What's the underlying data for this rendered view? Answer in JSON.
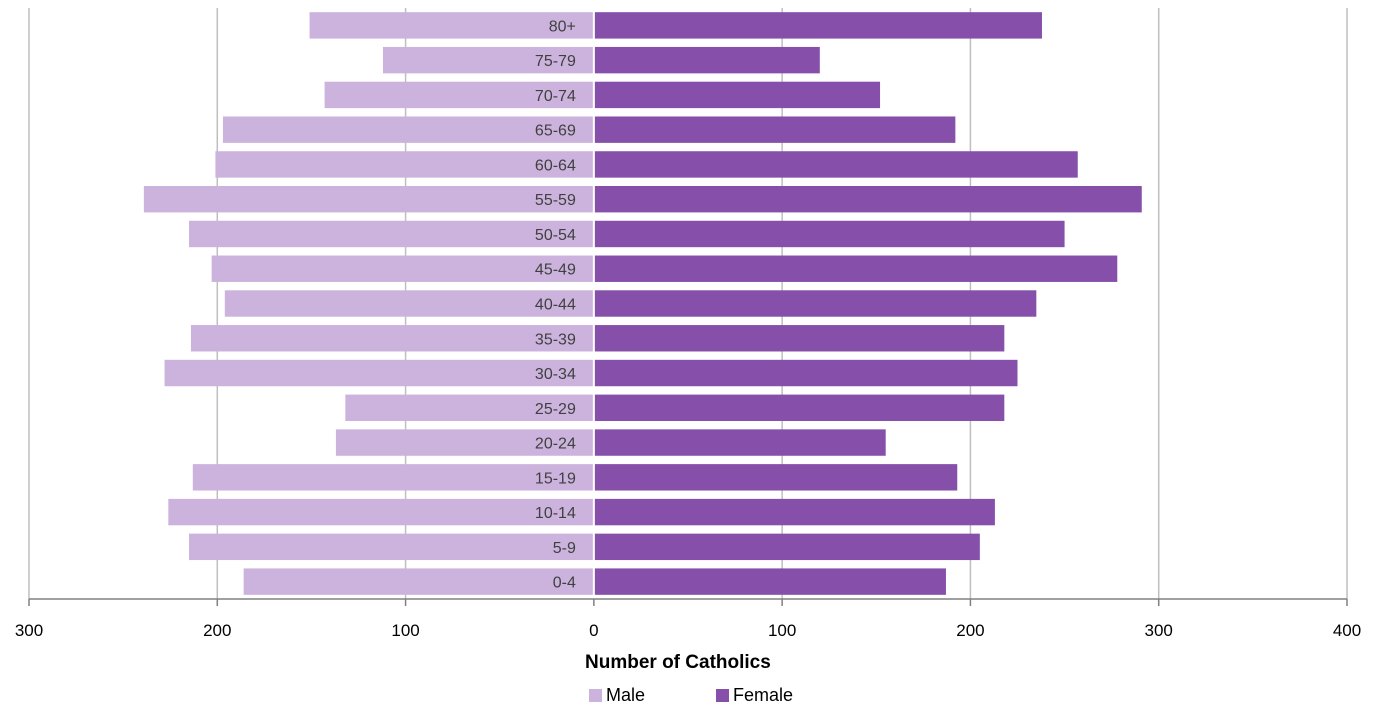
{
  "chart_data": {
    "type": "bar",
    "orientation": "horizontal",
    "layout": "population-pyramid",
    "categories": [
      "80+",
      "75-79",
      "70-74",
      "65-69",
      "60-64",
      "55-59",
      "50-54",
      "45-49",
      "40-44",
      "35-39",
      "30-34",
      "25-29",
      "20-24",
      "15-19",
      "10-14",
      "5-9",
      "0-4"
    ],
    "series": [
      {
        "name": "Male",
        "color": "#ccb3dd",
        "direction": "left",
        "values": [
          151,
          112,
          143,
          197,
          201,
          239,
          215,
          203,
          196,
          214,
          228,
          132,
          137,
          213,
          226,
          215,
          186
        ]
      },
      {
        "name": "Female",
        "color": "#8650aa",
        "direction": "right",
        "values": [
          238,
          120,
          152,
          192,
          257,
          291,
          250,
          278,
          235,
          218,
          225,
          218,
          155,
          193,
          213,
          205,
          187
        ]
      }
    ],
    "xlabel": "Number of Catholics",
    "xlim": [
      -300,
      400
    ],
    "xticks": [
      {
        "value": -300,
        "label": "300"
      },
      {
        "value": -200,
        "label": "200"
      },
      {
        "value": -100,
        "label": "100"
      },
      {
        "value": 0,
        "label": "0"
      },
      {
        "value": 100,
        "label": "100"
      },
      {
        "value": 200,
        "label": "200"
      },
      {
        "value": 300,
        "label": "300"
      },
      {
        "value": 400,
        "label": "400"
      }
    ],
    "grid": "vertical",
    "legend": "bottom-center",
    "legend_items": [
      "Male",
      "Female"
    ]
  }
}
